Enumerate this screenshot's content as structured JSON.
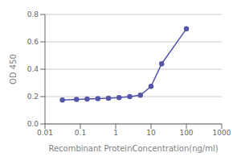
{
  "chart_data": {
    "type": "line",
    "x": [
      0.031,
      0.078,
      0.156,
      0.313,
      0.625,
      1.25,
      2.5,
      5,
      10,
      20,
      100
    ],
    "values": [
      0.175,
      0.18,
      0.183,
      0.185,
      0.188,
      0.193,
      0.2,
      0.21,
      0.275,
      0.44,
      0.695
    ],
    "color": "#5555aa",
    "marker": "circle",
    "xlabel": "Recombinant ProteinConcentration(ng/ml)",
    "ylabel": "OD 450",
    "log": "x",
    "xlim": [
      0.01,
      1000
    ],
    "xticks": [
      0.01,
      0.1,
      1,
      10,
      100,
      1000
    ],
    "ylim": [
      0,
      0.8
    ],
    "yticks": [
      {
        "value": 0,
        "label": "0.0"
      },
      0.2,
      0.4,
      0.6,
      0.8
    ],
    "grid": "y"
  }
}
